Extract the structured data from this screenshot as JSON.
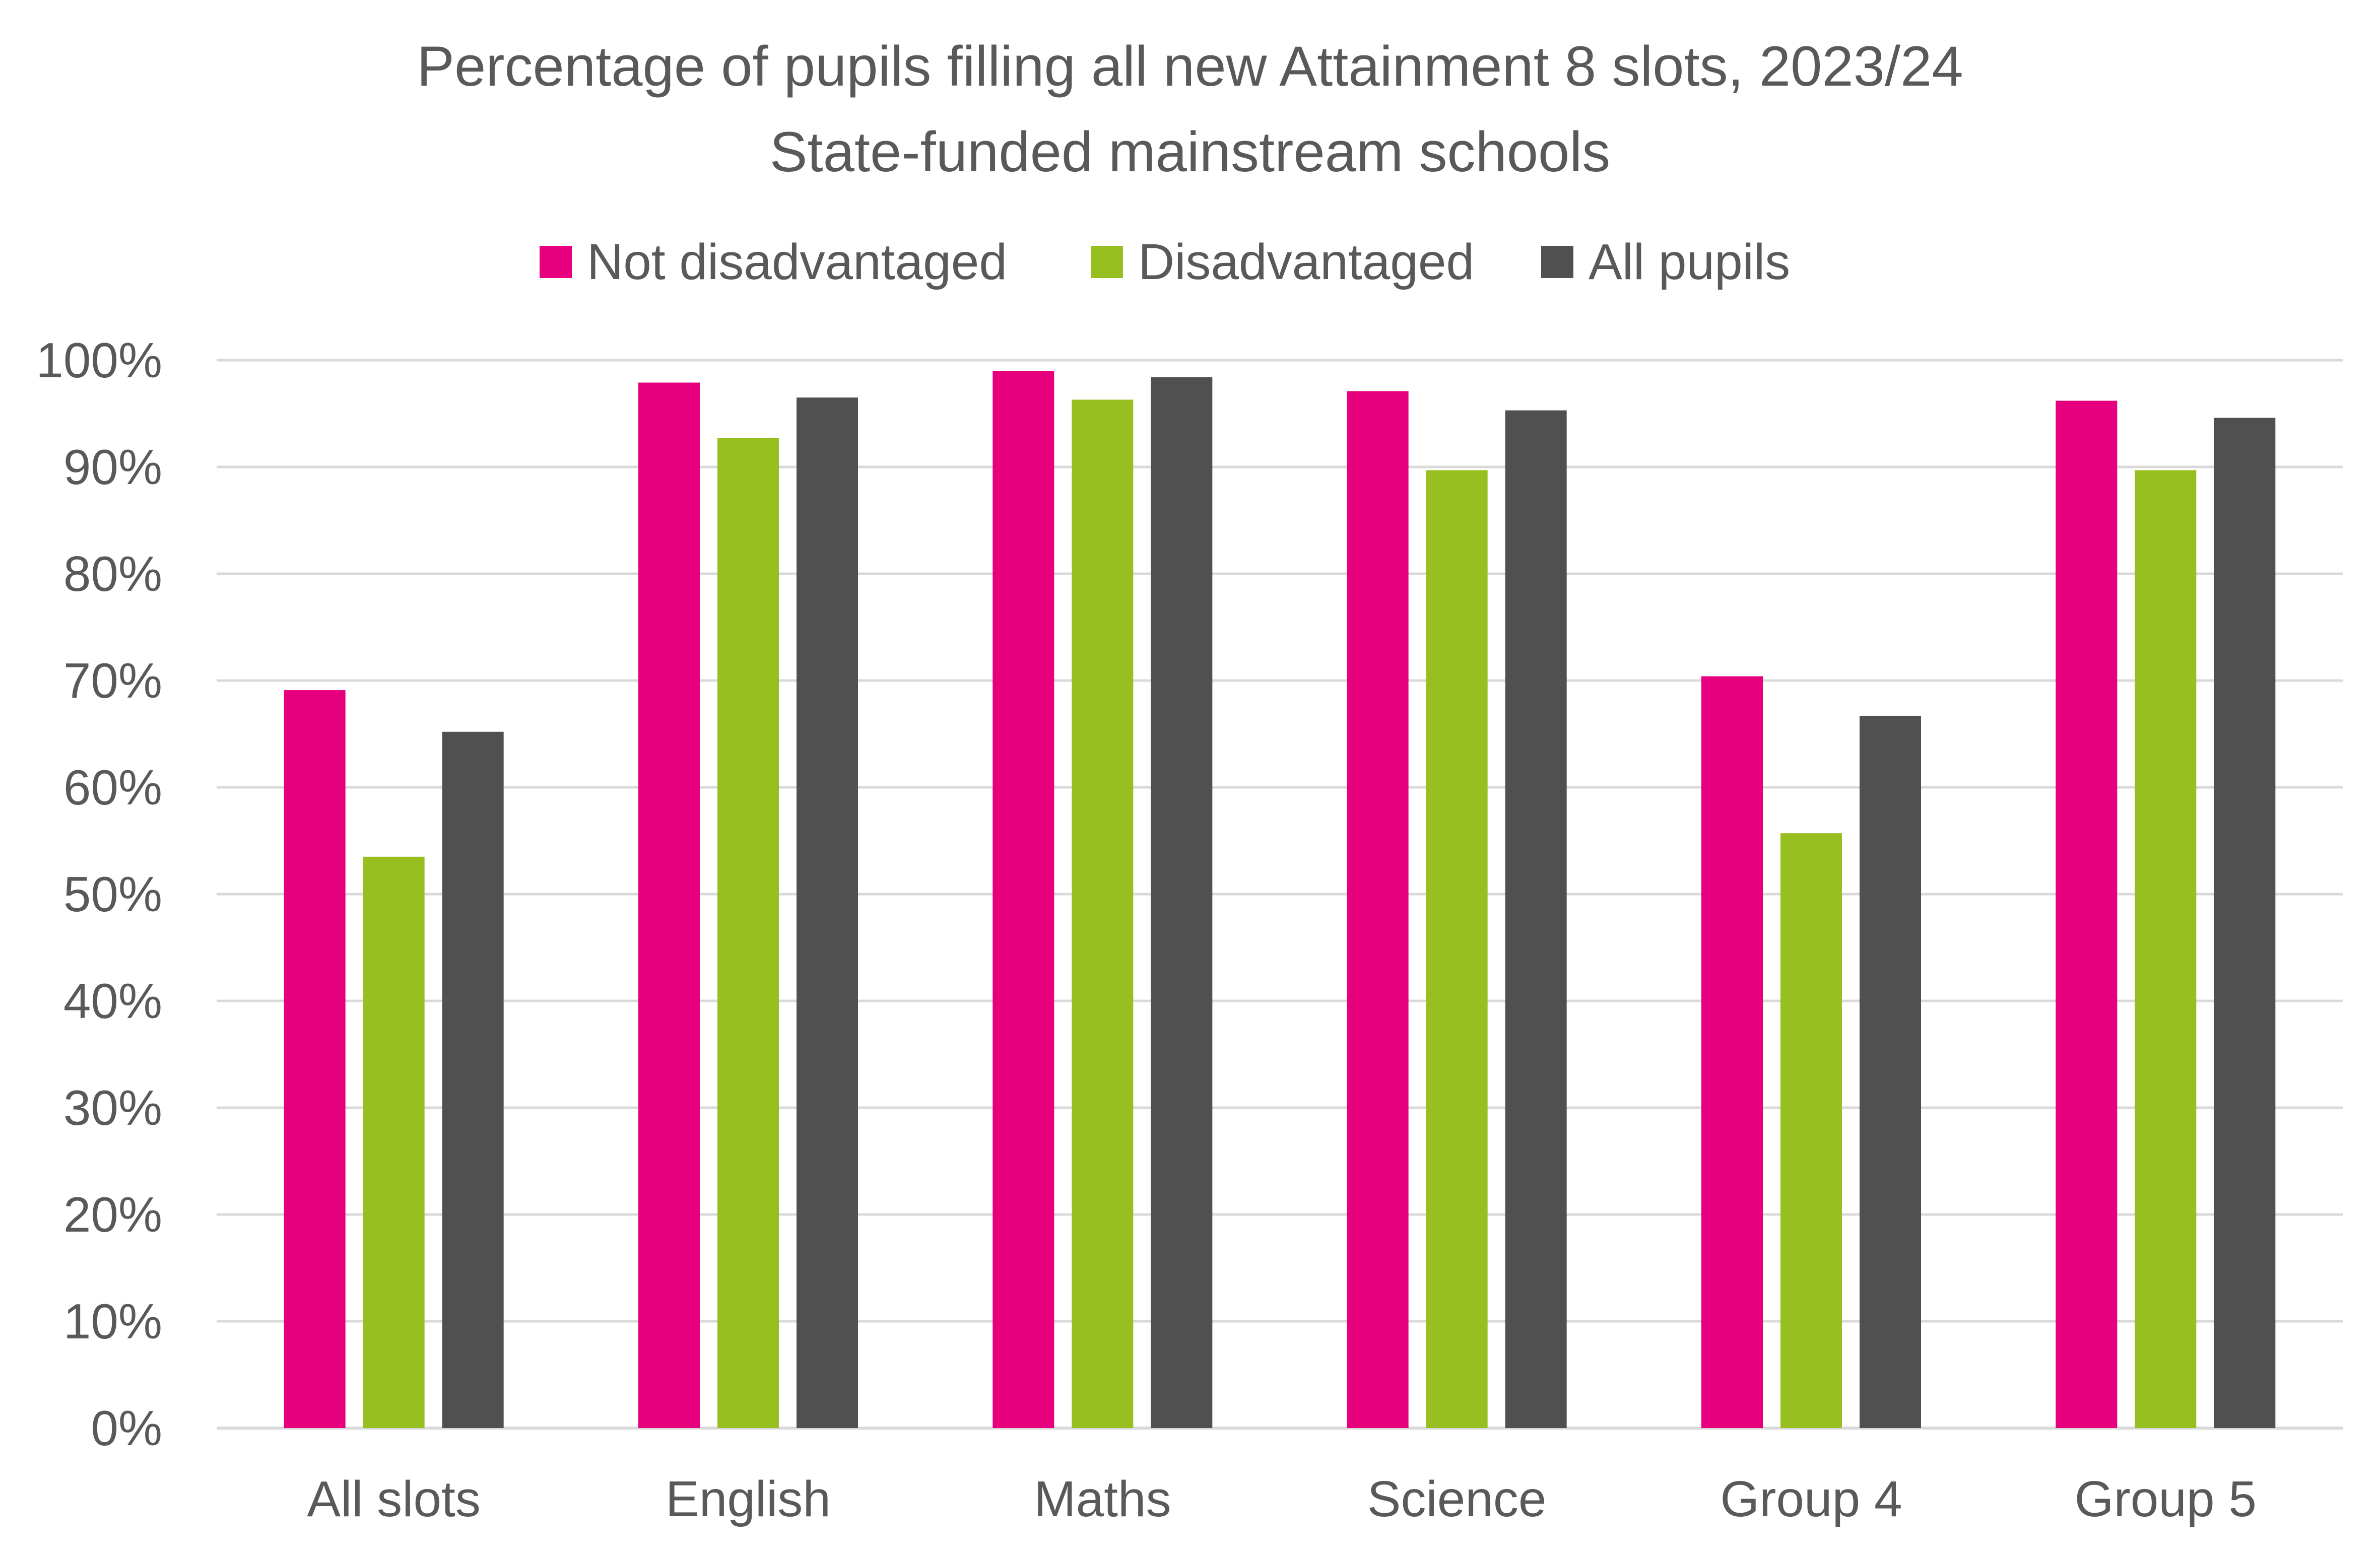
{
  "chart_data": {
    "type": "bar",
    "title": "Percentage of pupils filling all new Attainment 8 slots, 2023/24",
    "subtitle": "State-funded mainstream schools",
    "xlabel": "",
    "ylabel": "",
    "ylim": [
      0,
      100
    ],
    "yticks": [
      0,
      10,
      20,
      30,
      40,
      50,
      60,
      70,
      80,
      90,
      100
    ],
    "ytick_suffix": "%",
    "grid": true,
    "legend_position": "top",
    "categories": [
      "All slots",
      "English",
      "Maths",
      "Science",
      "Group 4",
      "Group 5"
    ],
    "series": [
      {
        "name": "Not disadvantaged",
        "color": "#e6007e",
        "values": [
          69.1,
          97.9,
          99.0,
          97.1,
          70.4,
          96.2
        ]
      },
      {
        "name": "Disadvantaged",
        "color": "#97bf20",
        "values": [
          53.5,
          92.7,
          96.3,
          89.7,
          55.7,
          89.7
        ]
      },
      {
        "name": "All pupils",
        "color": "#505050",
        "values": [
          65.2,
          96.5,
          98.4,
          95.3,
          66.7,
          94.6
        ]
      }
    ]
  }
}
